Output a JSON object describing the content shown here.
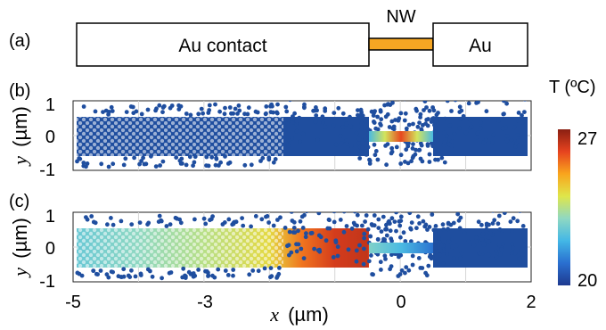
{
  "panels": {
    "a": {
      "label": "(a)",
      "left_box": "Au contact",
      "wire_label": "NW",
      "right_box": "Au"
    },
    "b": {
      "label": "(b)"
    },
    "c": {
      "label": "(c)"
    }
  },
  "axes": {
    "y_symbol": "y",
    "y_unit": "(µm)",
    "x_symbol": "x",
    "x_unit": "(µm)"
  },
  "colorbar": {
    "title": "T (ºC)",
    "max_label": "27",
    "min_label": "20",
    "colormap": "jet",
    "stops": [
      "#1e3a8f",
      "#2a6fd0",
      "#43b7e6",
      "#8fd8c2",
      "#dfe64a",
      "#f9a51d",
      "#e6431f",
      "#8a1f12"
    ]
  },
  "colors": {
    "nanowire": "#f6a623",
    "cold_dots": "#1f4e9f"
  },
  "chart_data": [
    {
      "type": "scatter",
      "panel": "b",
      "xlim": [
        -5,
        2
      ],
      "ylim": [
        -1,
        1
      ],
      "x_ticks": [
        -5,
        -3,
        0,
        2
      ],
      "y_ticks": [
        "1",
        "0",
        "-1"
      ],
      "grid": true,
      "t_range": [
        20,
        27
      ],
      "notes": "uniform ~20 ºC everywhere except nanowire (~24-27 ºC at center)"
    },
    {
      "type": "scatter",
      "panel": "c",
      "xlim": [
        -5,
        2
      ],
      "ylim": [
        -1,
        1
      ],
      "x_ticks": [
        -5,
        -3,
        0,
        2
      ],
      "x_tick_labels": [
        "-5",
        "-3",
        "0",
        "2"
      ],
      "y_ticks": [
        "1",
        "0",
        "-1"
      ],
      "grid": true,
      "t_range": [
        20,
        27
      ],
      "temperature_profile_x": [
        -5,
        -4,
        -3,
        -2,
        -1.5,
        -1,
        -0.5,
        -0.4
      ],
      "temperature_profile_T": [
        22.5,
        23.0,
        23.5,
        24.2,
        25.5,
        26.2,
        26.4,
        26.0
      ]
    }
  ]
}
